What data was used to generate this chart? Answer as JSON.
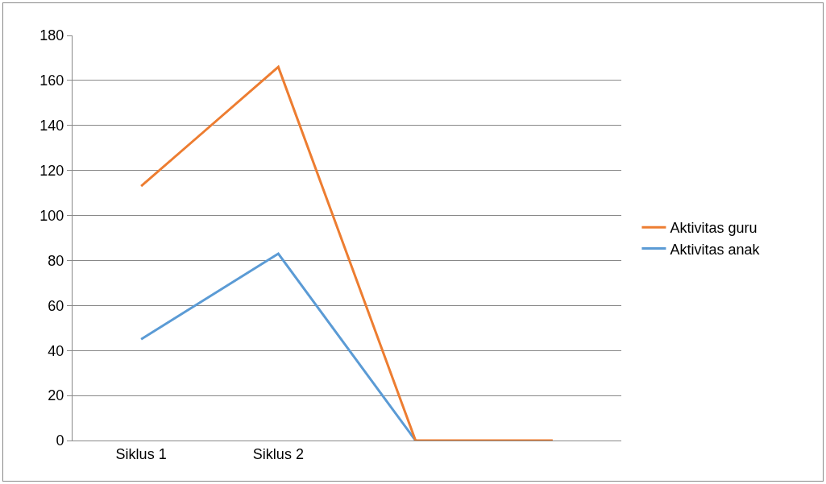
{
  "chart_data": {
    "type": "line",
    "categories": [
      "Siklus 1",
      "Siklus 2",
      null,
      null
    ],
    "series": [
      {
        "name": "Aktivitas guru",
        "color": "#ed7d31",
        "values": [
          113,
          166,
          0,
          0
        ]
      },
      {
        "name": "Aktivitas anak",
        "color": "#5b9bd5",
        "values": [
          45,
          83,
          0,
          null
        ]
      }
    ],
    "ylim": [
      0,
      180
    ],
    "yticks": [
      0,
      20,
      40,
      60,
      80,
      100,
      120,
      140,
      160,
      180
    ],
    "grid": "y",
    "legend": "right",
    "marker": "none",
    "line_style": "solid"
  }
}
